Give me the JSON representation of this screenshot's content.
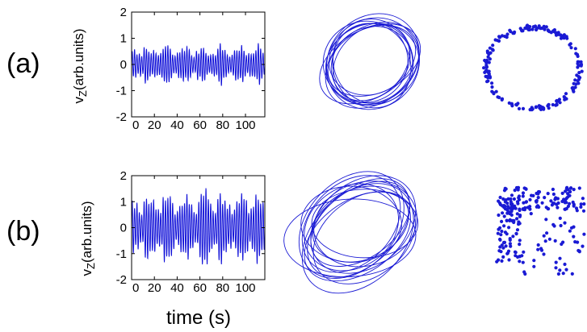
{
  "figure": {
    "xlabel": "time (s)",
    "ylabel_main": "v",
    "ylabel_sub": "Z",
    "ylabel_suffix": "(arb.units)"
  },
  "colors": {
    "trace": "#1010d8",
    "marks": "#1a1ad4",
    "axes": "#000000"
  },
  "chart_data": [
    {
      "panel": "(a)",
      "type": "line",
      "xlim": [
        0,
        117
      ],
      "ylim": [
        -2,
        2
      ],
      "xticks": [
        0,
        20,
        40,
        60,
        80,
        100
      ],
      "xtick_labels": [
        "0",
        "20",
        "40",
        "60",
        "80",
        "100"
      ],
      "yticks": [
        2,
        1,
        0,
        -1,
        -2
      ],
      "ytick_labels": [
        "2",
        "1",
        "0",
        "-1",
        "-2"
      ],
      "signal": {
        "amplitude": 0.85,
        "peaks_in_window": 56
      },
      "phase_portrait": {
        "type": "line",
        "loops": 12
      },
      "return_map": {
        "type": "scatter",
        "shape": "ring",
        "points": 180
      }
    },
    {
      "panel": "(b)",
      "type": "line",
      "xlim": [
        0,
        117
      ],
      "ylim": [
        -2,
        2
      ],
      "xticks": [
        0,
        20,
        40,
        60,
        80,
        100
      ],
      "xtick_labels": [
        "0",
        "20",
        "40",
        "60",
        "80",
        "100"
      ],
      "yticks": [
        2,
        1,
        0,
        -1,
        -2
      ],
      "ytick_labels": [
        "2",
        "1",
        "0",
        "-1",
        "-2"
      ],
      "signal": {
        "amplitude": 1.6,
        "peaks_in_window": 56
      },
      "phase_portrait": {
        "type": "line",
        "loops": 14
      },
      "return_map": {
        "type": "scatter",
        "shape": "cloud",
        "points": 260
      }
    }
  ]
}
